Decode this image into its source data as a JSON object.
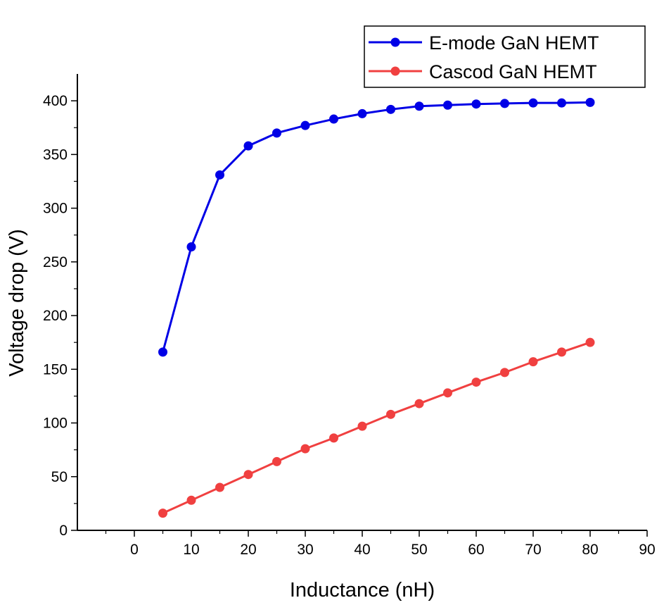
{
  "chart_data": {
    "type": "line",
    "xlabel": "Inductance (nH)",
    "ylabel": "Voltage drop (V)",
    "xlim": [
      -10,
      90
    ],
    "ylim": [
      0,
      425
    ],
    "xticks": [
      0,
      10,
      20,
      30,
      40,
      50,
      60,
      70,
      80,
      90
    ],
    "yticks": [
      0,
      50,
      100,
      150,
      200,
      250,
      300,
      350,
      400
    ],
    "x": [
      5,
      10,
      15,
      20,
      25,
      30,
      35,
      40,
      45,
      50,
      55,
      60,
      65,
      70,
      75,
      80
    ],
    "series": [
      {
        "name": "E-mode GaN HEMT",
        "color": "#0000e6",
        "values": [
          166,
          264,
          331,
          358,
          370,
          377,
          383,
          388,
          392,
          395,
          396,
          397,
          397.5,
          398,
          398,
          398.5
        ]
      },
      {
        "name": "Cascod GaN HEMT",
        "color": "#f04040",
        "values": [
          16,
          28,
          40,
          52,
          64,
          76,
          86,
          97,
          108,
          118,
          128,
          138,
          147,
          157,
          166,
          175
        ]
      }
    ],
    "legend_position": "top-right",
    "grid": false
  }
}
